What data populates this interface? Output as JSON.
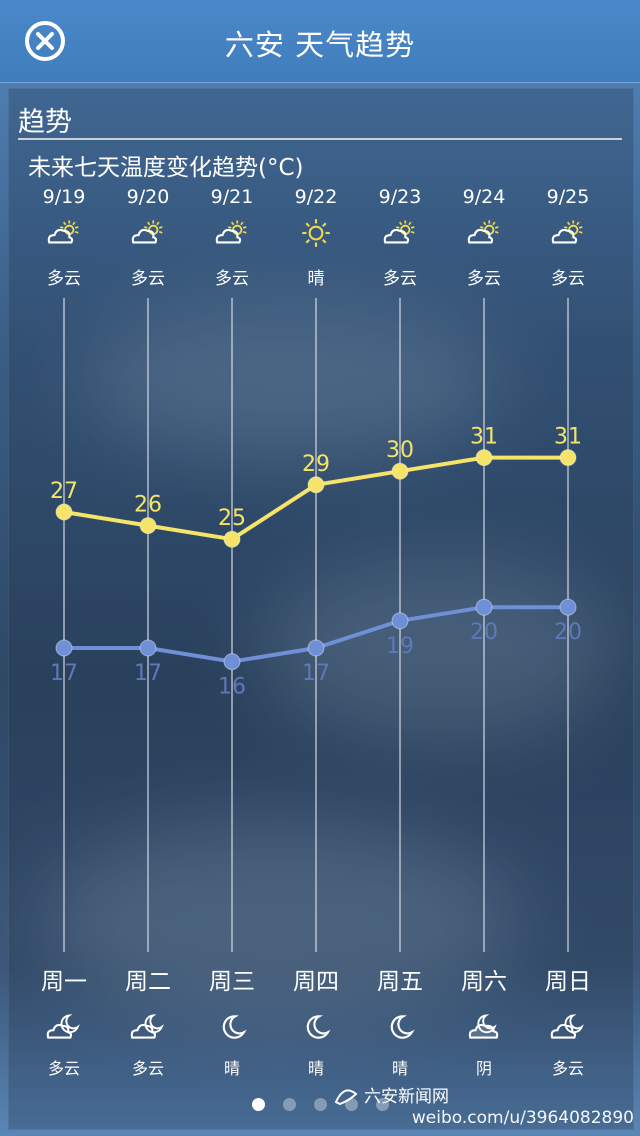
{
  "header": {
    "title": "六安 天气趋势"
  },
  "section": {
    "title": "趋势"
  },
  "chart_title": "未来七天温度变化趋势(°C)",
  "days": [
    {
      "date": "9/19",
      "day_icon": "partly-cloudy-sun-icon",
      "day_cond": "多云",
      "week": "周一",
      "night_icon": "cloudy-moon-icon",
      "night_cond": "多云"
    },
    {
      "date": "9/20",
      "day_icon": "partly-cloudy-sun-icon",
      "day_cond": "多云",
      "week": "周二",
      "night_icon": "cloudy-moon-icon",
      "night_cond": "多云"
    },
    {
      "date": "9/21",
      "day_icon": "partly-cloudy-sun-icon",
      "day_cond": "多云",
      "week": "周三",
      "night_icon": "moon-icon",
      "night_cond": "晴"
    },
    {
      "date": "9/22",
      "day_icon": "sun-icon",
      "day_cond": "晴",
      "week": "周四",
      "night_icon": "moon-icon",
      "night_cond": "晴"
    },
    {
      "date": "9/23",
      "day_icon": "partly-cloudy-sun-icon",
      "day_cond": "多云",
      "week": "周五",
      "night_icon": "moon-icon",
      "night_cond": "晴"
    },
    {
      "date": "9/24",
      "day_icon": "partly-cloudy-sun-icon",
      "day_cond": "多云",
      "week": "周六",
      "night_icon": "overcast-moon-icon",
      "night_cond": "阴"
    },
    {
      "date": "9/25",
      "day_icon": "partly-cloudy-sun-icon",
      "day_cond": "多云",
      "week": "周日",
      "night_icon": "cloudy-moon-icon",
      "night_cond": "多云"
    }
  ],
  "chart_data": {
    "type": "line",
    "categories": [
      "9/19",
      "9/20",
      "9/21",
      "9/22",
      "9/23",
      "9/24",
      "9/25"
    ],
    "series": [
      {
        "values": [
          27,
          26,
          25,
          29,
          30,
          31,
          31
        ],
        "color": "#f5e36a"
      },
      {
        "values": [
          17,
          17,
          16,
          17,
          19,
          20,
          20
        ],
        "color": "#6f8fd6"
      }
    ],
    "title": "未来七天温度变化趋势(°C)",
    "ylim": [
      10,
      35
    ],
    "grid": false
  },
  "pager": {
    "count": 5,
    "active": 0
  },
  "watermark": {
    "logo_text": "六安新闻网",
    "url": "weibo.com/u/3964082890"
  },
  "colors": {
    "header_bg": "#4180c1",
    "high_line": "#f5e36a",
    "low_line": "#6f8fd6"
  }
}
